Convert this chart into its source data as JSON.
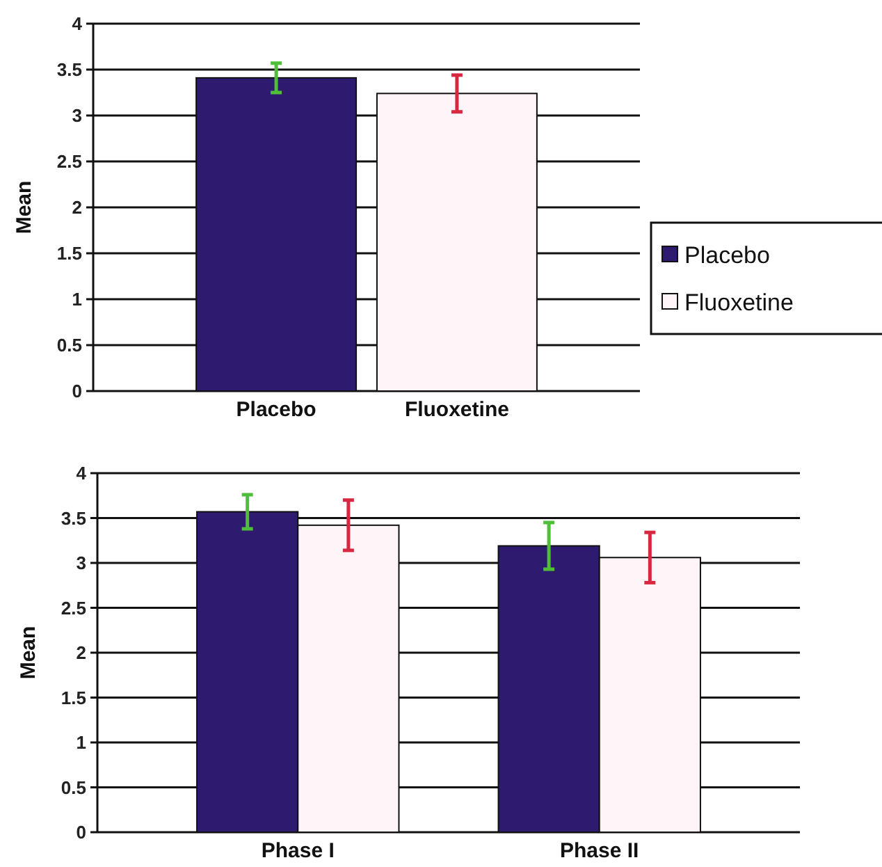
{
  "chart_data": [
    {
      "type": "bar",
      "ylabel": "Mean",
      "categories": [
        "Placebo",
        "Fluoxetine"
      ],
      "ylim": [
        0,
        4
      ],
      "yticks": [
        0,
        0.5,
        1,
        1.5,
        2,
        2.5,
        3,
        3.5,
        4
      ],
      "grid": "y",
      "legend": "right",
      "series": [
        {
          "name": "Placebo",
          "color": "#2e1a6e",
          "values": [
            3.41,
            null
          ],
          "errors": [
            0.16,
            null
          ]
        },
        {
          "name": "Fluoxetine",
          "color": "#fff4f7",
          "values": [
            null,
            3.24
          ],
          "errors": [
            null,
            0.2
          ]
        }
      ]
    },
    {
      "type": "bar",
      "ylabel": "Mean",
      "categories": [
        "Phase I",
        "Phase II"
      ],
      "ylim": [
        0,
        4
      ],
      "yticks": [
        0,
        0.5,
        1,
        1.5,
        2,
        2.5,
        3,
        3.5,
        4
      ],
      "grid": "y",
      "legend": false,
      "series": [
        {
          "name": "Placebo",
          "color": "#2e1a6e",
          "values": [
            3.57,
            3.19
          ],
          "errors": [
            0.19,
            0.26
          ]
        },
        {
          "name": "Fluoxetine",
          "color": "#fff4f7",
          "values": [
            3.42,
            3.06
          ],
          "errors": [
            0.28,
            0.28
          ]
        }
      ]
    }
  ]
}
